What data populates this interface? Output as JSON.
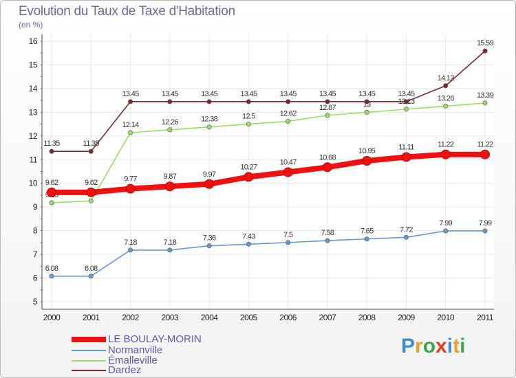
{
  "header": {
    "title": "Evolution du Taux de Taxe d'Habitation",
    "subtitle": "(en %)"
  },
  "brand": {
    "logo_text": "Proxiti"
  },
  "chart_data": {
    "type": "line",
    "title": "Evolution du Taux de Taxe d'Habitation",
    "ylabel": "(en %)",
    "xlabel": "",
    "x": [
      "2000",
      "2001",
      "2002",
      "2003",
      "2004",
      "2005",
      "2006",
      "2007",
      "2008",
      "2009",
      "2010",
      "2011"
    ],
    "ylim": [
      5,
      16
    ],
    "yticks": [
      5,
      6,
      7,
      8,
      9,
      10,
      11,
      12,
      13,
      14,
      15,
      16
    ],
    "grid": true,
    "legend": "bottom-left",
    "series": [
      {
        "name": "Dardez",
        "color": "#7a2a2a",
        "values": [
          11.35,
          11.35,
          13.45,
          13.45,
          13.45,
          13.45,
          13.45,
          13.45,
          13.45,
          13.45,
          14.12,
          15.59
        ],
        "labels": [
          "11.35",
          "11.35",
          "13.45",
          "13.45",
          "13.45",
          "13.45",
          "13.45",
          "13.45",
          "13.45",
          "13.45",
          "14.12",
          "15.59"
        ]
      },
      {
        "name": "Émalleville",
        "color": "#99dd66",
        "values": [
          9.18,
          9.26,
          12.14,
          12.26,
          12.38,
          12.5,
          12.62,
          12.87,
          13.0,
          13.13,
          13.26,
          13.39
        ],
        "labels": [
          "9.18",
          "9.26",
          "12.14",
          "12.26",
          "12.38",
          "12.5",
          "12.62",
          "12.87",
          "13",
          "13.13",
          "13.26",
          "13.39"
        ]
      },
      {
        "name": "Normanville",
        "color": "#6699cc",
        "values": [
          6.08,
          6.08,
          7.18,
          7.18,
          7.36,
          7.43,
          7.5,
          7.58,
          7.65,
          7.72,
          7.99,
          7.99
        ],
        "labels": [
          "6.08",
          "6.08",
          "7.18",
          "7.18",
          "7.36",
          "7.43",
          "7.5",
          "7.58",
          "7.65",
          "7.72",
          "7.99",
          "7.99"
        ]
      },
      {
        "name": "LE BOULAY-MORIN",
        "color": "#ee1111",
        "values": [
          9.62,
          9.62,
          9.77,
          9.87,
          9.97,
          10.27,
          10.47,
          10.68,
          10.95,
          11.11,
          11.22,
          11.22
        ],
        "labels": [
          "9.62",
          "9.62",
          "9.77",
          "9.87",
          "9.97",
          "10.27",
          "10.47",
          "10.68",
          "10.95",
          "11.11",
          "11.22",
          "11.22"
        ]
      }
    ]
  },
  "legend": {
    "items": [
      {
        "label": "LE BOULAY-MORIN",
        "color": "#ee1111"
      },
      {
        "label": "Normanville",
        "color": "#6699cc"
      },
      {
        "label": "Émalleville",
        "color": "#99dd66"
      },
      {
        "label": "Dardez",
        "color": "#7a2a2a"
      }
    ]
  }
}
